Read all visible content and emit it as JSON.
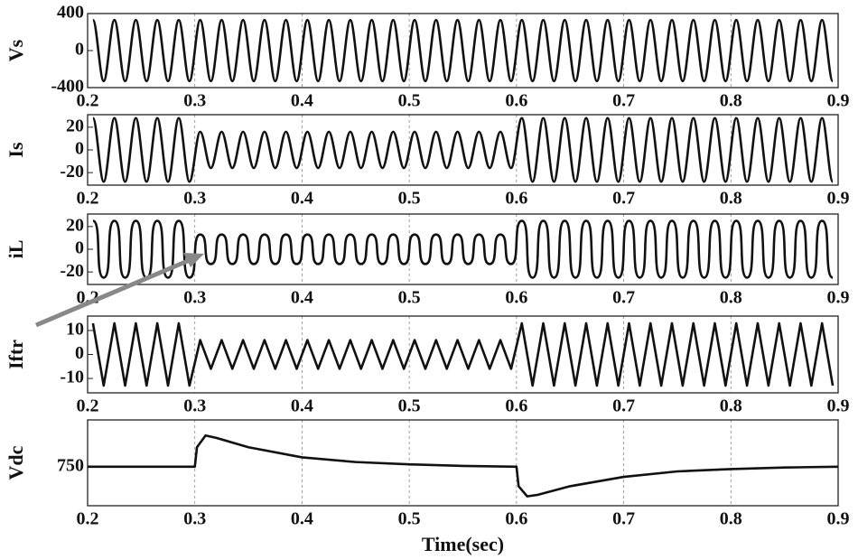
{
  "chart_data": [
    {
      "type": "line",
      "ylabel": "Vs",
      "curve": "sine",
      "color": "#111111",
      "x": [
        0.205,
        0.215,
        0.225,
        0.235,
        0.245,
        0.255,
        0.265,
        0.275,
        0.285,
        0.295,
        0.305,
        0.315,
        0.325,
        0.335,
        0.345,
        0.355,
        0.365,
        0.375,
        0.385,
        0.395,
        0.405,
        0.415,
        0.425,
        0.435,
        0.445,
        0.455,
        0.465,
        0.475,
        0.485,
        0.495,
        0.505,
        0.515,
        0.525,
        0.535,
        0.545,
        0.555,
        0.565,
        0.575,
        0.585,
        0.595,
        0.605,
        0.615,
        0.625,
        0.635,
        0.645,
        0.655,
        0.665,
        0.675,
        0.685,
        0.695,
        0.705,
        0.715,
        0.725,
        0.735,
        0.745,
        0.755,
        0.765,
        0.775,
        0.785,
        0.795,
        0.805,
        0.815,
        0.825,
        0.835,
        0.845,
        0.855,
        0.865,
        0.875,
        0.885,
        0.895
      ],
      "values": [
        330,
        -330,
        330,
        -330,
        330,
        -330,
        330,
        -330,
        330,
        -330,
        330,
        -330,
        330,
        -330,
        330,
        -330,
        330,
        -330,
        330,
        -330,
        330,
        -330,
        330,
        -330,
        330,
        -330,
        330,
        -330,
        330,
        -330,
        330,
        -330,
        330,
        -330,
        330,
        -330,
        330,
        -330,
        330,
        -330,
        330,
        -330,
        330,
        -330,
        330,
        -330,
        330,
        -330,
        330,
        -330,
        330,
        -330,
        330,
        -330,
        330,
        -330,
        330,
        -330,
        330,
        -330,
        330,
        -330,
        330,
        -330,
        330,
        -330,
        330,
        -330,
        330,
        -330
      ],
      "xlim": [
        0.2,
        0.9
      ],
      "xticks": [
        0.2,
        0.3,
        0.4,
        0.5,
        0.6,
        0.7,
        0.8,
        0.9
      ],
      "ylim": [
        -400,
        400
      ],
      "yticks": [
        -400,
        0,
        400
      ],
      "grid": true
    },
    {
      "type": "line",
      "ylabel": "Is",
      "curve": "sine",
      "color": "#111111",
      "x": [
        0.205,
        0.215,
        0.225,
        0.235,
        0.245,
        0.255,
        0.265,
        0.275,
        0.285,
        0.295,
        0.305,
        0.315,
        0.325,
        0.335,
        0.345,
        0.355,
        0.365,
        0.375,
        0.385,
        0.395,
        0.405,
        0.415,
        0.425,
        0.435,
        0.445,
        0.455,
        0.465,
        0.475,
        0.485,
        0.495,
        0.505,
        0.515,
        0.525,
        0.535,
        0.545,
        0.555,
        0.565,
        0.575,
        0.585,
        0.595,
        0.605,
        0.615,
        0.625,
        0.635,
        0.645,
        0.655,
        0.665,
        0.675,
        0.685,
        0.695,
        0.705,
        0.715,
        0.725,
        0.735,
        0.745,
        0.755,
        0.765,
        0.775,
        0.785,
        0.795,
        0.805,
        0.815,
        0.825,
        0.835,
        0.845,
        0.855,
        0.865,
        0.875,
        0.885,
        0.895
      ],
      "values": [
        28,
        -28,
        28,
        -28,
        28,
        -28,
        28,
        -28,
        28,
        -28,
        16,
        -16,
        16,
        -16,
        16,
        -16,
        16,
        -16,
        16,
        -16,
        16,
        -16,
        16,
        -16,
        16,
        -16,
        16,
        -16,
        16,
        -16,
        16,
        -16,
        16,
        -16,
        16,
        -16,
        16,
        -16,
        16,
        -16,
        28,
        -28,
        28,
        -28,
        28,
        -28,
        28,
        -28,
        28,
        -28,
        28,
        -28,
        28,
        -28,
        28,
        -28,
        28,
        -28,
        28,
        -28,
        28,
        -28,
        28,
        -28,
        28,
        -28,
        28,
        -28,
        28,
        -28
      ],
      "xlim": [
        0.2,
        0.9
      ],
      "xticks": [
        0.2,
        0.3,
        0.4,
        0.5,
        0.6,
        0.7,
        0.8,
        0.9
      ],
      "ylim": [
        -31,
        31
      ],
      "yticks": [
        -20,
        0,
        20
      ],
      "grid": true
    },
    {
      "type": "line",
      "ylabel": "iL",
      "curve": "square",
      "color": "#111111",
      "x": [
        0.205,
        0.215,
        0.225,
        0.235,
        0.245,
        0.255,
        0.265,
        0.275,
        0.285,
        0.295,
        0.305,
        0.315,
        0.325,
        0.335,
        0.345,
        0.355,
        0.365,
        0.375,
        0.385,
        0.395,
        0.405,
        0.415,
        0.425,
        0.435,
        0.445,
        0.455,
        0.465,
        0.475,
        0.485,
        0.495,
        0.505,
        0.515,
        0.525,
        0.535,
        0.545,
        0.555,
        0.565,
        0.575,
        0.585,
        0.595,
        0.605,
        0.615,
        0.625,
        0.635,
        0.645,
        0.655,
        0.665,
        0.675,
        0.685,
        0.695,
        0.705,
        0.715,
        0.725,
        0.735,
        0.745,
        0.755,
        0.765,
        0.775,
        0.785,
        0.795,
        0.805,
        0.815,
        0.825,
        0.835,
        0.845,
        0.855,
        0.865,
        0.875,
        0.885,
        0.895
      ],
      "values": [
        25,
        -25,
        25,
        -25,
        25,
        -25,
        25,
        -25,
        25,
        -25,
        13,
        -13,
        13,
        -13,
        13,
        -13,
        13,
        -13,
        13,
        -13,
        13,
        -13,
        13,
        -13,
        13,
        -13,
        13,
        -13,
        13,
        -13,
        13,
        -13,
        13,
        -13,
        13,
        -13,
        13,
        -13,
        13,
        -13,
        25,
        -25,
        25,
        -25,
        25,
        -25,
        25,
        -25,
        25,
        -25,
        25,
        -25,
        25,
        -25,
        25,
        -25,
        25,
        -25,
        25,
        -25,
        25,
        -25,
        25,
        -25,
        25,
        -25,
        25,
        -25,
        25,
        -25
      ],
      "xlim": [
        0.2,
        0.9
      ],
      "xticks": [
        0.2,
        0.3,
        0.4,
        0.5,
        0.6,
        0.7,
        0.8,
        0.9
      ],
      "ylim": [
        -31,
        31
      ],
      "yticks": [
        -20,
        0,
        20
      ],
      "grid": true
    },
    {
      "type": "line",
      "ylabel": "Iftr",
      "curve": "linear",
      "color": "#111111",
      "x": [
        0.205,
        0.215,
        0.225,
        0.235,
        0.245,
        0.255,
        0.265,
        0.275,
        0.285,
        0.295,
        0.305,
        0.315,
        0.325,
        0.335,
        0.345,
        0.355,
        0.365,
        0.375,
        0.385,
        0.395,
        0.405,
        0.415,
        0.425,
        0.435,
        0.445,
        0.455,
        0.465,
        0.475,
        0.485,
        0.495,
        0.505,
        0.515,
        0.525,
        0.535,
        0.545,
        0.555,
        0.565,
        0.575,
        0.585,
        0.595,
        0.605,
        0.615,
        0.625,
        0.635,
        0.645,
        0.655,
        0.665,
        0.675,
        0.685,
        0.695,
        0.705,
        0.715,
        0.725,
        0.735,
        0.745,
        0.755,
        0.765,
        0.775,
        0.785,
        0.795,
        0.805,
        0.815,
        0.825,
        0.835,
        0.845,
        0.855,
        0.865,
        0.875,
        0.885,
        0.895
      ],
      "values": [
        13,
        -13,
        13,
        -13,
        13,
        -13,
        13,
        -13,
        13,
        -13,
        6,
        -6,
        6,
        -6,
        6,
        -6,
        6,
        -6,
        6,
        -6,
        6,
        -6,
        6,
        -6,
        6,
        -6,
        6,
        -6,
        6,
        -6,
        6,
        -6,
        6,
        -6,
        6,
        -6,
        6,
        -6,
        6,
        -6,
        13,
        -13,
        13,
        -13,
        13,
        -13,
        13,
        -13,
        13,
        -13,
        13,
        -13,
        13,
        -13,
        13,
        -13,
        13,
        -13,
        13,
        -13,
        13,
        -13,
        13,
        -13,
        13,
        -13,
        13,
        -13,
        13,
        -13
      ],
      "xlim": [
        0.2,
        0.9
      ],
      "xticks": [
        0.2,
        0.3,
        0.4,
        0.5,
        0.6,
        0.7,
        0.8,
        0.9
      ],
      "ylim": [
        -16,
        16
      ],
      "yticks": [
        -10,
        0,
        10
      ],
      "grid": true
    },
    {
      "type": "line",
      "ylabel": "Vdc",
      "xlabel": "Time(sec)",
      "curve": "linear",
      "color": "#111111",
      "x": [
        0.2,
        0.25,
        0.3,
        0.302,
        0.31,
        0.32,
        0.35,
        0.4,
        0.45,
        0.5,
        0.55,
        0.6,
        0.602,
        0.61,
        0.62,
        0.65,
        0.7,
        0.75,
        0.8,
        0.85,
        0.9
      ],
      "values": [
        750,
        750,
        750,
        775,
        790,
        787,
        775,
        762,
        756,
        753,
        751,
        750,
        725,
        712,
        714,
        725,
        737,
        744,
        747,
        749,
        750
      ],
      "xlim": [
        0.2,
        0.9
      ],
      "xticks": [
        0.2,
        0.3,
        0.4,
        0.5,
        0.6,
        0.7,
        0.8,
        0.9
      ],
      "ylim": [
        700,
        810
      ],
      "yticks": [
        750
      ],
      "grid": true
    }
  ]
}
